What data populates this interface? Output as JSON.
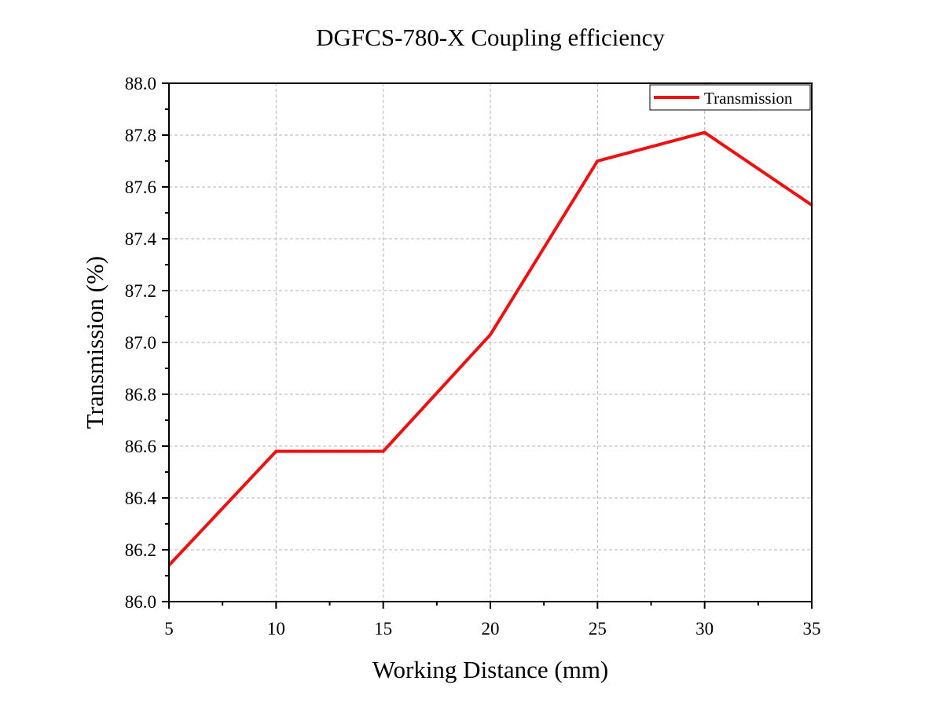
{
  "chart_data": {
    "type": "line",
    "title": "DGFCS-780-X Coupling efficiency",
    "xlabel": "Working Distance (mm)",
    "ylabel": "Transmission (%)",
    "xlim": [
      5,
      35
    ],
    "ylim": [
      86.0,
      88.0
    ],
    "xticks": [
      "5",
      "10",
      "15",
      "20",
      "25",
      "30",
      "35"
    ],
    "yticks": [
      "86.0",
      "86.2",
      "86.4",
      "86.6",
      "86.8",
      "87.0",
      "87.2",
      "87.4",
      "87.6",
      "87.8",
      "88.0"
    ],
    "grid": true,
    "legend_position": "top-right",
    "series": [
      {
        "name": "Transmission",
        "color": "#ee1111",
        "x": [
          5,
          10,
          15,
          20,
          25,
          30,
          35
        ],
        "y": [
          86.14,
          86.58,
          86.58,
          87.03,
          87.7,
          87.81,
          87.53
        ]
      }
    ]
  }
}
